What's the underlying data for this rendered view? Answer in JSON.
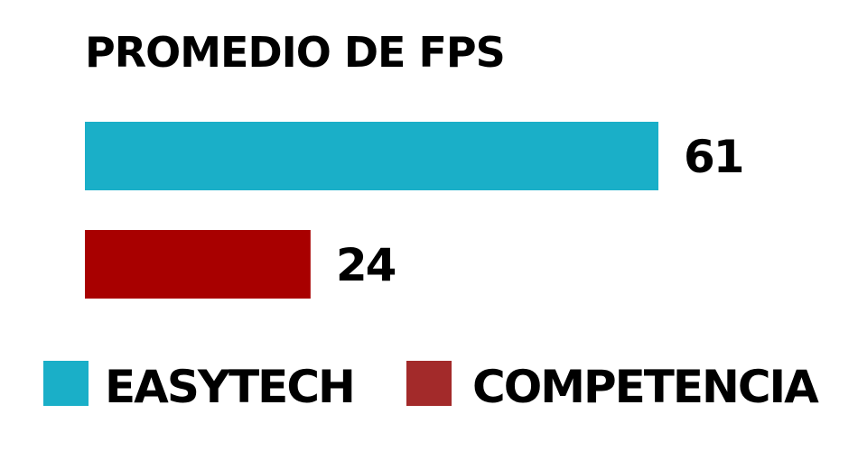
{
  "chart_data": {
    "type": "bar",
    "orientation": "horizontal",
    "title": "PROMEDIO DE FPS",
    "categories": [
      "EASYTECH",
      "COMPETENCIA"
    ],
    "values": [
      61,
      24
    ],
    "value_labels": [
      "61",
      "24"
    ],
    "xlim": [
      0,
      61
    ],
    "grid": false,
    "axes_visible": false,
    "legend_placement": "bottom",
    "series": [
      {
        "name": "EASYTECH",
        "value": 61,
        "color": "#1aafc8"
      },
      {
        "name": "COMPETENCIA",
        "value": 24,
        "color": "#a80000"
      }
    ],
    "legend": [
      {
        "label": "EASYTECH",
        "color": "#1aafc8"
      },
      {
        "label": "COMPETENCIA",
        "color": "#a32a2a"
      }
    ]
  }
}
